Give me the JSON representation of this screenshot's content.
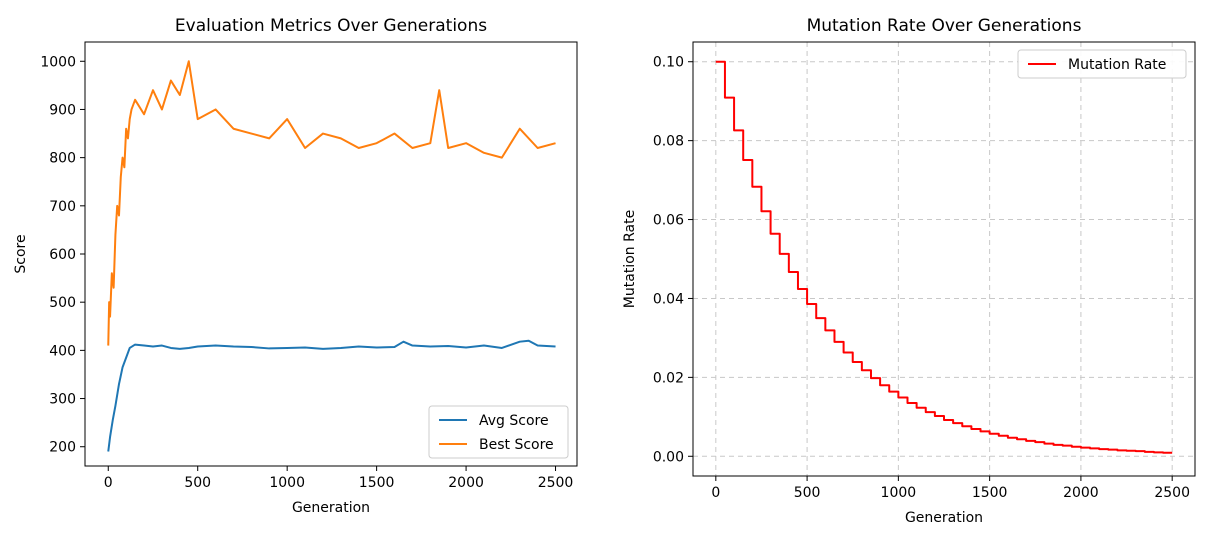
{
  "chart_data": [
    {
      "type": "line",
      "title": "Evaluation Metrics Over Generations",
      "xlabel": "Generation",
      "ylabel": "Score",
      "xlim": [
        -130,
        2620
      ],
      "ylim": [
        160,
        1040
      ],
      "xticks": [
        "0",
        "500",
        "1000",
        "1500",
        "2000",
        "2500"
      ],
      "yticks": [
        "200",
        "300",
        "400",
        "500",
        "600",
        "700",
        "800",
        "900",
        "1000"
      ],
      "grid": false,
      "legend_position": "lower-right",
      "series": [
        {
          "name": "Avg Score",
          "color": "#1f77b4",
          "x": [
            0,
            10,
            25,
            40,
            60,
            80,
            100,
            120,
            150,
            200,
            250,
            300,
            350,
            400,
            450,
            500,
            600,
            700,
            800,
            900,
            1000,
            1100,
            1200,
            1300,
            1400,
            1500,
            1600,
            1650,
            1700,
            1800,
            1900,
            2000,
            2100,
            2200,
            2300,
            2350,
            2400,
            2500
          ],
          "values": [
            190,
            220,
            255,
            285,
            330,
            365,
            385,
            405,
            412,
            410,
            408,
            410,
            405,
            403,
            405,
            408,
            410,
            408,
            407,
            404,
            405,
            406,
            403,
            405,
            408,
            406,
            407,
            418,
            410,
            408,
            409,
            406,
            410,
            405,
            418,
            420,
            410,
            408
          ]
        },
        {
          "name": "Best Score",
          "color": "#ff7f0e",
          "x": [
            0,
            5,
            10,
            20,
            30,
            40,
            50,
            60,
            70,
            80,
            90,
            100,
            110,
            120,
            130,
            150,
            200,
            250,
            300,
            350,
            400,
            450,
            500,
            600,
            700,
            800,
            900,
            1000,
            1100,
            1200,
            1300,
            1400,
            1500,
            1600,
            1700,
            1800,
            1850,
            1900,
            2000,
            2100,
            2200,
            2300,
            2400,
            2500
          ],
          "values": [
            410,
            500,
            470,
            560,
            530,
            640,
            700,
            680,
            760,
            800,
            780,
            860,
            840,
            880,
            900,
            920,
            890,
            940,
            900,
            960,
            930,
            1000,
            880,
            900,
            860,
            850,
            840,
            880,
            820,
            850,
            840,
            820,
            830,
            850,
            820,
            830,
            940,
            820,
            830,
            810,
            800,
            860,
            820,
            830
          ]
        }
      ]
    },
    {
      "type": "line",
      "title": "Mutation Rate Over Generations",
      "xlabel": "Generation",
      "ylabel": "Mutation Rate",
      "xlim": [
        -125,
        2625
      ],
      "ylim": [
        -0.005,
        0.105
      ],
      "xticks": [
        "0",
        "500",
        "1000",
        "1500",
        "2000",
        "2500"
      ],
      "yticks": [
        "0.00",
        "0.02",
        "0.04",
        "0.06",
        "0.08",
        "0.10"
      ],
      "grid": true,
      "legend_position": "top-right",
      "step": "post",
      "series": [
        {
          "name": "Mutation Rate",
          "color": "#ff0000",
          "x": [
            0,
            50,
            100,
            150,
            200,
            250,
            300,
            350,
            400,
            450,
            500,
            550,
            600,
            650,
            700,
            750,
            800,
            850,
            900,
            950,
            1000,
            1050,
            1100,
            1150,
            1200,
            1250,
            1300,
            1350,
            1400,
            1450,
            1500,
            1550,
            1600,
            1650,
            1700,
            1750,
            1800,
            1850,
            1900,
            1950,
            2000,
            2050,
            2100,
            2150,
            2200,
            2250,
            2300,
            2350,
            2400,
            2450,
            2500
          ],
          "values": [
            0.1,
            0.0909,
            0.0826,
            0.0751,
            0.0683,
            0.0621,
            0.0564,
            0.0513,
            0.0467,
            0.0424,
            0.0386,
            0.035,
            0.0319,
            0.029,
            0.0263,
            0.0239,
            0.0218,
            0.0198,
            0.018,
            0.0164,
            0.0149,
            0.0135,
            0.0123,
            0.0112,
            0.0102,
            0.0092,
            0.0084,
            0.0076,
            0.0069,
            0.0063,
            0.0057,
            0.0052,
            0.0047,
            0.0043,
            0.0039,
            0.0036,
            0.0032,
            0.0029,
            0.0027,
            0.0024,
            0.0022,
            0.002,
            0.0018,
            0.0017,
            0.0015,
            0.0014,
            0.0013,
            0.0011,
            0.001,
            0.0009,
            0.0009
          ]
        }
      ]
    }
  ]
}
